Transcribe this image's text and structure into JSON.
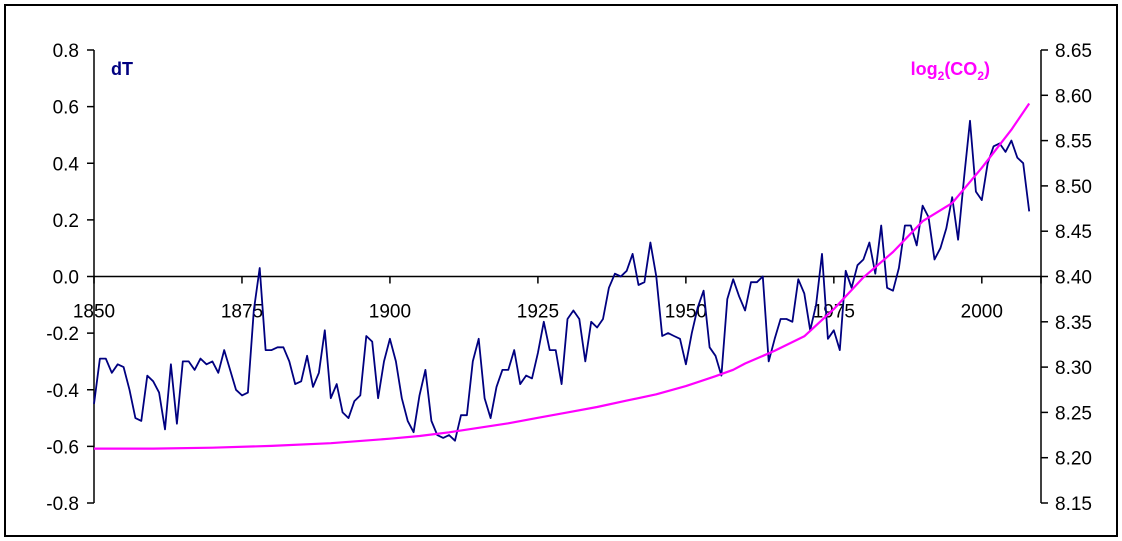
{
  "chart_data": {
    "type": "line",
    "title": "",
    "xlabel": "",
    "x_ticks": [
      "1850",
      "1875",
      "1900",
      "1925",
      "1950",
      "1975",
      "2000"
    ],
    "xlim": [
      1850,
      2010
    ],
    "left_axis": {
      "ylim": [
        -0.8,
        0.8
      ],
      "ticks": [
        "0.8",
        "0.6",
        "0.4",
        "0.2",
        "0.0",
        "-0.2",
        "-0.4",
        "-0.6",
        "-0.8"
      ]
    },
    "right_axis": {
      "ylim": [
        8.15,
        8.65
      ],
      "ticks": [
        "8.65",
        "8.60",
        "8.55",
        "8.50",
        "8.45",
        "8.40",
        "8.35",
        "8.30",
        "8.25",
        "8.20",
        "8.15"
      ]
    },
    "grid": false,
    "x_axis_crosses_at": 0.0,
    "series": [
      {
        "name": "dT",
        "axis": "left",
        "color": "#000080",
        "label_parts": {
          "main": "dT"
        },
        "x": [
          1850,
          1851,
          1852,
          1853,
          1854,
          1855,
          1856,
          1857,
          1858,
          1859,
          1860,
          1861,
          1862,
          1863,
          1864,
          1865,
          1866,
          1867,
          1868,
          1869,
          1870,
          1871,
          1872,
          1873,
          1874,
          1875,
          1876,
          1877,
          1878,
          1879,
          1880,
          1881,
          1882,
          1883,
          1884,
          1885,
          1886,
          1887,
          1888,
          1889,
          1890,
          1891,
          1892,
          1893,
          1894,
          1895,
          1896,
          1897,
          1898,
          1899,
          1900,
          1901,
          1902,
          1903,
          1904,
          1905,
          1906,
          1907,
          1908,
          1909,
          1910,
          1911,
          1912,
          1913,
          1914,
          1915,
          1916,
          1917,
          1918,
          1919,
          1920,
          1921,
          1922,
          1923,
          1924,
          1925,
          1926,
          1927,
          1928,
          1929,
          1930,
          1931,
          1932,
          1933,
          1934,
          1935,
          1936,
          1937,
          1938,
          1939,
          1940,
          1941,
          1942,
          1943,
          1944,
          1945,
          1946,
          1947,
          1948,
          1949,
          1950,
          1951,
          1952,
          1953,
          1954,
          1955,
          1956,
          1957,
          1958,
          1959,
          1960,
          1961,
          1962,
          1963,
          1964,
          1965,
          1966,
          1967,
          1968,
          1969,
          1970,
          1971,
          1972,
          1973,
          1974,
          1975,
          1976,
          1977,
          1978,
          1979,
          1980,
          1981,
          1982,
          1983,
          1984,
          1985,
          1986,
          1987,
          1988,
          1989,
          1990,
          1991,
          1992,
          1993,
          1994,
          1995,
          1996,
          1997,
          1998,
          1999,
          2000,
          2001,
          2002,
          2003,
          2004,
          2005,
          2006,
          2007,
          2008
        ],
        "values": [
          -0.45,
          -0.29,
          -0.29,
          -0.34,
          -0.31,
          -0.32,
          -0.4,
          -0.5,
          -0.51,
          -0.35,
          -0.37,
          -0.41,
          -0.54,
          -0.31,
          -0.52,
          -0.3,
          -0.3,
          -0.33,
          -0.29,
          -0.31,
          -0.3,
          -0.34,
          -0.26,
          -0.33,
          -0.4,
          -0.42,
          -0.41,
          -0.12,
          0.03,
          -0.26,
          -0.26,
          -0.25,
          -0.25,
          -0.3,
          -0.38,
          -0.37,
          -0.28,
          -0.39,
          -0.34,
          -0.19,
          -0.43,
          -0.38,
          -0.48,
          -0.5,
          -0.44,
          -0.42,
          -0.21,
          -0.23,
          -0.43,
          -0.3,
          -0.22,
          -0.3,
          -0.43,
          -0.51,
          -0.55,
          -0.42,
          -0.33,
          -0.51,
          -0.56,
          -0.57,
          -0.56,
          -0.58,
          -0.49,
          -0.49,
          -0.3,
          -0.22,
          -0.43,
          -0.5,
          -0.39,
          -0.33,
          -0.33,
          -0.26,
          -0.38,
          -0.35,
          -0.36,
          -0.27,
          -0.16,
          -0.26,
          -0.26,
          -0.38,
          -0.15,
          -0.12,
          -0.15,
          -0.3,
          -0.16,
          -0.18,
          -0.15,
          -0.04,
          0.01,
          0.0,
          0.02,
          0.08,
          -0.03,
          -0.02,
          0.12,
          0.0,
          -0.21,
          -0.2,
          -0.21,
          -0.22,
          -0.31,
          -0.2,
          -0.11,
          -0.05,
          -0.25,
          -0.28,
          -0.35,
          -0.08,
          -0.01,
          -0.07,
          -0.12,
          -0.02,
          -0.02,
          0.0,
          -0.3,
          -0.22,
          -0.15,
          -0.15,
          -0.16,
          -0.01,
          -0.06,
          -0.19,
          -0.1,
          0.08,
          -0.22,
          -0.19,
          -0.26,
          0.02,
          -0.04,
          0.04,
          0.06,
          0.12,
          0.01,
          0.18,
          -0.04,
          -0.05,
          0.03,
          0.18,
          0.18,
          0.11,
          0.25,
          0.21,
          0.06,
          0.1,
          0.17,
          0.28,
          0.13,
          0.35,
          0.55,
          0.3,
          0.27,
          0.4,
          0.46,
          0.47,
          0.44,
          0.48,
          0.42,
          0.4,
          0.23
        ]
      },
      {
        "name": "log2(CO2)",
        "axis": "right",
        "color": "#ff00ff",
        "label_parts": {
          "pre": "log",
          "sub1": "2",
          "mid": "(CO",
          "sub2": "2",
          "post": ")"
        },
        "x": [
          1850,
          1860,
          1870,
          1880,
          1890,
          1900,
          1905,
          1910,
          1915,
          1920,
          1925,
          1930,
          1935,
          1940,
          1945,
          1950,
          1955,
          1958,
          1960,
          1965,
          1970,
          1975,
          1980,
          1985,
          1990,
          1995,
          2000,
          2005,
          2008
        ],
        "values": [
          8.21,
          8.21,
          8.211,
          8.213,
          8.216,
          8.221,
          8.224,
          8.228,
          8.233,
          8.238,
          8.244,
          8.25,
          8.256,
          8.263,
          8.27,
          8.279,
          8.29,
          8.297,
          8.304,
          8.318,
          8.334,
          8.364,
          8.399,
          8.427,
          8.461,
          8.481,
          8.52,
          8.562,
          8.591
        ]
      }
    ]
  }
}
